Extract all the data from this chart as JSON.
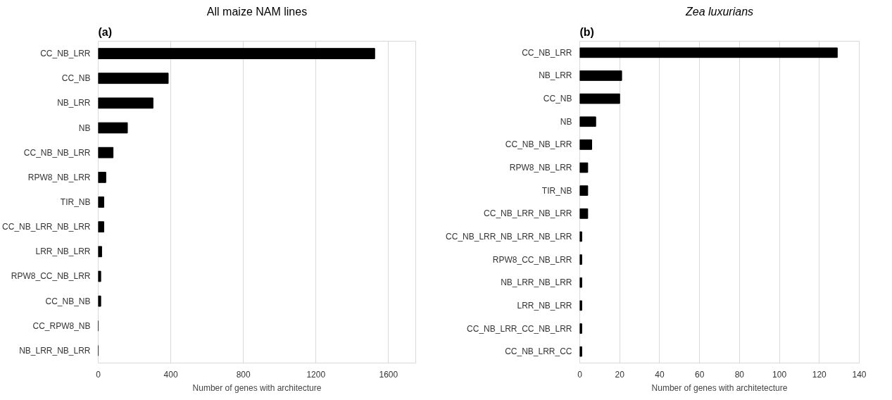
{
  "chart_data": [
    {
      "type": "bar",
      "orientation": "horizontal",
      "title": "All maize NAM lines",
      "xlabel": "Number of genes with architecture",
      "annotations": [
        "(a)"
      ],
      "categories": [
        "CC_NB_LRR",
        "CC_NB",
        "NB_LRR",
        "NB",
        "CC_NB_NB_LRR",
        "RPW8_NB_LRR",
        "TIR_NB",
        "CC_NB_LRR_NB_LRR",
        "LRR_NB_LRR",
        "RPW8_CC_NB_LRR",
        "CC_NB_NB",
        "CC_RPW8_NB",
        "NB_LRR_NB_LRR"
      ],
      "values": [
        1524,
        386,
        302,
        161,
        82,
        42,
        31,
        31,
        19,
        14,
        14,
        null,
        null
      ],
      "color": "#000000",
      "xlim": [
        0,
        1750
      ],
      "xticks": [
        0,
        400,
        800,
        1200,
        1600
      ],
      "grid": "x"
    },
    {
      "type": "bar",
      "orientation": "horizontal",
      "title": "Zea luxurians",
      "xlabel": "Number of genes with architetecture",
      "annotations": [
        "(b)"
      ],
      "categories": [
        "CC_NB_LRR",
        "NB_LRR",
        "CC_NB",
        "NB",
        "CC_NB_NB_LRR",
        "RPW8_NB_LRR",
        "TIR_NB",
        "CC_NB_LRR_NB_LRR",
        "CC_NB_LRR_NB_LRR_NB_LRR",
        "RPW8_CC_NB_LRR",
        "NB_LRR_NB_LRR",
        "LRR_NB_LRR",
        "CC_NB_LRR_CC_NB_LRR",
        "CC_NB_LRR_CC"
      ],
      "values": [
        129,
        21,
        20,
        8,
        6,
        4,
        4,
        4,
        1,
        1,
        1,
        1,
        1,
        1
      ],
      "color": "#000000",
      "xlim": [
        0,
        140
      ],
      "xticks": [
        0,
        20,
        40,
        60,
        80,
        100,
        120,
        140
      ],
      "grid": "x"
    }
  ]
}
